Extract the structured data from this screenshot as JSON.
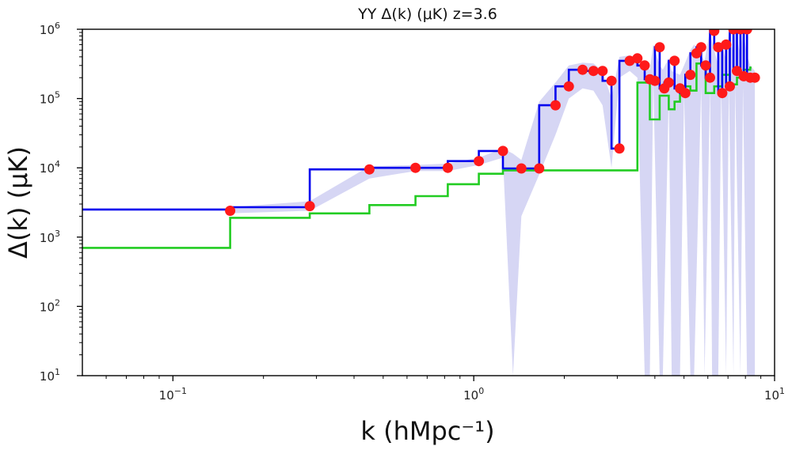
{
  "chart_data": {
    "type": "line",
    "title": "YY  Δ(k) (μK)  z=3.6",
    "xlabel": "k (hMpc⁻¹)",
    "ylabel": "Δ(k) (μK)",
    "xscale": "log",
    "yscale": "log",
    "xlim": [
      0.05,
      10
    ],
    "ylim": [
      10,
      1000000
    ],
    "x_ticks": [
      {
        "value": 0.1,
        "base": "10",
        "exp": "−1"
      },
      {
        "value": 1,
        "base": "10",
        "exp": "0"
      },
      {
        "value": 10,
        "base": "10",
        "exp": "1"
      }
    ],
    "y_ticks": [
      {
        "value": 10,
        "base": "10",
        "exp": "1"
      },
      {
        "value": 100,
        "base": "10",
        "exp": "2"
      },
      {
        "value": 1000,
        "base": "10",
        "exp": "3"
      },
      {
        "value": 10000,
        "base": "10",
        "exp": "4"
      },
      {
        "value": 100000,
        "base": "10",
        "exp": "5"
      },
      {
        "value": 1000000,
        "base": "10",
        "exp": "6"
      }
    ],
    "grid": false,
    "colors": {
      "measured": "#0000ee",
      "noise": "#22cc22",
      "points": "#ff1a1a",
      "band": "#c8c8f0"
    },
    "series": [
      {
        "style": "step-post",
        "color": "#0000ee",
        "x": [
          0.05,
          0.155,
          0.285,
          0.45,
          0.64,
          0.82,
          1.04,
          1.25,
          1.44,
          1.65,
          1.87,
          2.07,
          2.3,
          2.5,
          2.68,
          2.87,
          3.05,
          3.3,
          3.5,
          3.7,
          3.85,
          4.0,
          4.15,
          4.3,
          4.45,
          4.65,
          4.85,
          5.05,
          5.25,
          5.5,
          5.7,
          5.9,
          6.1,
          6.3,
          6.5,
          6.7,
          6.9,
          7.1,
          7.3,
          7.5,
          7.7,
          7.9,
          8.1,
          8.3,
          8.6
        ],
        "y": [
          2500,
          2700,
          9500,
          10000,
          10000,
          12500,
          17500,
          9800,
          9800,
          80000,
          150000,
          260000,
          250000,
          250000,
          180000,
          19000,
          350000,
          380000,
          300000,
          190000,
          180000,
          550000,
          140000,
          170000,
          350000,
          140000,
          120000,
          220000,
          450000,
          550000,
          300000,
          200000,
          950000,
          550000,
          120000,
          600000,
          150000,
          1000000,
          250000,
          1000000,
          210000,
          1000000,
          200000,
          200000,
          200000
        ]
      },
      {
        "style": "step-post",
        "color": "#22cc22",
        "x": [
          0.05,
          0.155,
          0.285,
          0.45,
          0.64,
          0.82,
          1.04,
          1.25,
          3.5,
          3.85,
          4.15,
          4.45,
          4.65,
          4.85,
          5.25,
          5.5,
          5.9,
          6.3,
          6.7,
          7.1,
          7.5,
          7.9,
          8.3
        ],
        "y": [
          700,
          1900,
          2200,
          2900,
          3900,
          5800,
          8200,
          9200,
          170000,
          50000,
          110000,
          70000,
          90000,
          150000,
          130000,
          320000,
          120000,
          150000,
          220000,
          160000,
          200000,
          260000,
          280000
        ]
      },
      {
        "style": "points",
        "color": "#ff1a1a",
        "x": [
          0.155,
          0.285,
          0.45,
          0.64,
          0.82,
          1.04,
          1.25,
          1.44,
          1.65,
          1.87,
          2.07,
          2.3,
          2.5,
          2.68,
          2.87,
          3.05,
          3.3,
          3.5,
          3.7,
          3.85,
          4.0,
          4.15,
          4.3,
          4.45,
          4.65,
          4.85,
          5.05,
          5.25,
          5.5,
          5.7,
          5.9,
          6.1,
          6.3,
          6.5,
          6.7,
          6.9,
          7.1,
          7.3,
          7.5,
          7.7,
          7.9,
          8.1,
          8.3,
          8.6
        ],
        "y": [
          2400,
          2800,
          9500,
          10000,
          10000,
          12500,
          17500,
          9800,
          9800,
          80000,
          150000,
          260000,
          250000,
          250000,
          180000,
          19000,
          350000,
          380000,
          300000,
          190000,
          180000,
          550000,
          140000,
          170000,
          350000,
          140000,
          120000,
          220000,
          450000,
          550000,
          300000,
          200000,
          950000,
          550000,
          120000,
          600000,
          150000,
          1000000,
          250000,
          1000000,
          210000,
          1000000,
          200000,
          200000
        ]
      }
    ],
    "band": {
      "color": "#c8c8f0",
      "x": [
        0.155,
        0.285,
        0.45,
        0.64,
        0.82,
        1.04,
        1.25,
        1.35,
        1.44,
        1.65,
        1.87,
        2.07,
        2.3,
        2.5,
        2.68,
        2.87,
        3.05,
        3.3,
        3.5,
        3.7,
        3.85,
        3.95,
        4.15,
        4.25,
        4.45,
        4.55,
        4.85,
        5.0,
        5.25,
        5.4,
        5.7,
        5.85,
        6.1,
        6.2,
        6.5,
        6.65,
        6.9,
        7.05,
        7.3,
        7.4,
        7.7,
        7.85,
        8.1,
        8.3,
        8.6
      ],
      "upper": [
        2700,
        3300,
        10500,
        11000,
        11500,
        14000,
        19000,
        16000,
        13000,
        90000,
        170000,
        300000,
        330000,
        320000,
        250000,
        100000,
        400000,
        420000,
        380000,
        300000,
        260000,
        600000,
        300000,
        260000,
        380000,
        250000,
        220000,
        300000,
        500000,
        600000,
        420000,
        350000,
        1000000,
        650000,
        300000,
        650000,
        350000,
        1000000,
        420000,
        1000000,
        420000,
        1000000,
        420000,
        300000,
        250000
      ],
      "lower": [
        2200,
        2400,
        7000,
        9000,
        9000,
        11000,
        14000,
        10,
        2000,
        8000,
        30000,
        100000,
        140000,
        130000,
        80000,
        10000,
        200000,
        250000,
        200000,
        10,
        10,
        200000,
        10,
        10,
        120000,
        10,
        10,
        120000,
        10,
        10,
        150000,
        10,
        150000,
        10,
        10,
        150000,
        10,
        150000,
        10,
        150000,
        10,
        150000,
        10,
        10,
        10
      ]
    }
  }
}
